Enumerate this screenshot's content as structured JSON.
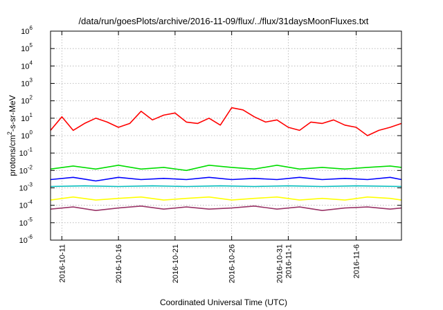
{
  "chart_data": {
    "type": "line",
    "title": "/data/run/goesPlots/archive/2016-11-09/flux/../flux/31daysMoonFluxes.txt",
    "xlabel": "Coordinated Universal Time (UTC)",
    "ylabel": {
      "prefix": "protons/cm",
      "sup": "2",
      "suffix": "-s-sr-MeV"
    },
    "yscale": "log",
    "ylim": [
      1e-06,
      1000000.0
    ],
    "y_ticks": [
      {
        "value": 1e-06,
        "base": "10",
        "exp": "-6"
      },
      {
        "value": 1e-05,
        "base": "10",
        "exp": "-5"
      },
      {
        "value": 0.0001,
        "base": "10",
        "exp": "-4"
      },
      {
        "value": 0.001,
        "base": "10",
        "exp": "-3"
      },
      {
        "value": 0.01,
        "base": "10",
        "exp": "-2"
      },
      {
        "value": 0.1,
        "base": "10",
        "exp": "-1"
      },
      {
        "value": 1,
        "base": "10",
        "exp": "0"
      },
      {
        "value": 10,
        "base": "10",
        "exp": "1"
      },
      {
        "value": 100,
        "base": "10",
        "exp": "2"
      },
      {
        "value": 1000,
        "base": "10",
        "exp": "3"
      },
      {
        "value": 10000,
        "base": "10",
        "exp": "4"
      },
      {
        "value": 100000,
        "base": "10",
        "exp": "5"
      },
      {
        "value": 1000000,
        "base": "10",
        "exp": "6"
      }
    ],
    "xlim": [
      "2016-10-10",
      "2016-11-10"
    ],
    "x_ticks": [
      {
        "date": "2016-10-11",
        "lines": [
          "2016-10-11"
        ]
      },
      {
        "date": "2016-10-16",
        "lines": [
          "2016-10-16"
        ]
      },
      {
        "date": "2016-10-21",
        "lines": [
          "2016-10-21"
        ]
      },
      {
        "date": "2016-10-26",
        "lines": [
          "2016-10-26"
        ]
      },
      {
        "date": "2016-10-31",
        "lines": [
          "2016-10-31",
          "2016-11-1"
        ]
      },
      {
        "date": "2016-11-06",
        "lines": [
          "2016-11-6"
        ]
      }
    ],
    "grid": true,
    "series": [
      {
        "color": "#ff0000",
        "x": [
          "2016-10-10",
          "2016-10-11",
          "2016-10-12",
          "2016-10-13",
          "2016-10-14",
          "2016-10-15",
          "2016-10-16",
          "2016-10-17",
          "2016-10-18",
          "2016-10-19",
          "2016-10-20",
          "2016-10-21",
          "2016-10-22",
          "2016-10-23",
          "2016-10-24",
          "2016-10-25",
          "2016-10-26",
          "2016-10-27",
          "2016-10-28",
          "2016-10-29",
          "2016-10-30",
          "2016-10-31",
          "2016-11-01",
          "2016-11-02",
          "2016-11-03",
          "2016-11-04",
          "2016-11-05",
          "2016-11-06",
          "2016-11-07",
          "2016-11-08",
          "2016-11-09",
          "2016-11-10"
        ],
        "y": [
          2,
          12,
          2,
          5,
          10,
          6,
          3,
          5,
          25,
          8,
          15,
          20,
          6,
          5,
          10,
          4,
          40,
          30,
          12,
          6,
          8,
          3,
          2,
          6,
          5,
          8,
          4,
          3,
          1,
          2,
          3,
          5
        ]
      },
      {
        "color": "#00dd00",
        "x": [
          "2016-10-10",
          "2016-10-12",
          "2016-10-14",
          "2016-10-16",
          "2016-10-18",
          "2016-10-20",
          "2016-10-22",
          "2016-10-24",
          "2016-10-26",
          "2016-10-28",
          "2016-10-30",
          "2016-11-01",
          "2016-11-03",
          "2016-11-05",
          "2016-11-07",
          "2016-11-09",
          "2016-11-10"
        ],
        "y": [
          0.012,
          0.018,
          0.012,
          0.02,
          0.012,
          0.015,
          0.01,
          0.02,
          0.015,
          0.012,
          0.02,
          0.012,
          0.015,
          0.012,
          0.015,
          0.018,
          0.015
        ]
      },
      {
        "color": "#0000ff",
        "x": [
          "2016-10-10",
          "2016-10-12",
          "2016-10-14",
          "2016-10-16",
          "2016-10-18",
          "2016-10-20",
          "2016-10-22",
          "2016-10-24",
          "2016-10-26",
          "2016-10-28",
          "2016-10-30",
          "2016-11-01",
          "2016-11-03",
          "2016-11-05",
          "2016-11-07",
          "2016-11-09",
          "2016-11-10"
        ],
        "y": [
          0.003,
          0.004,
          0.0025,
          0.004,
          0.003,
          0.0035,
          0.003,
          0.004,
          0.003,
          0.0035,
          0.003,
          0.004,
          0.003,
          0.0035,
          0.003,
          0.004,
          0.003
        ]
      },
      {
        "color": "#00bbbb",
        "x": [
          "2016-10-10",
          "2016-10-13",
          "2016-10-16",
          "2016-10-19",
          "2016-10-22",
          "2016-10-25",
          "2016-10-28",
          "2016-10-31",
          "2016-11-03",
          "2016-11-06",
          "2016-11-10"
        ],
        "y": [
          0.0012,
          0.0013,
          0.0012,
          0.0013,
          0.0012,
          0.0013,
          0.0012,
          0.0013,
          0.0012,
          0.0013,
          0.0012
        ]
      },
      {
        "color": "#ffff00",
        "x": [
          "2016-10-10",
          "2016-10-12",
          "2016-10-14",
          "2016-10-16",
          "2016-10-18",
          "2016-10-20",
          "2016-10-22",
          "2016-10-24",
          "2016-10-26",
          "2016-10-28",
          "2016-10-30",
          "2016-11-01",
          "2016-11-03",
          "2016-11-05",
          "2016-11-07",
          "2016-11-09",
          "2016-11-10"
        ],
        "y": [
          0.0002,
          0.0003,
          0.0002,
          0.00025,
          0.0003,
          0.0002,
          0.00025,
          0.0003,
          0.0002,
          0.00025,
          0.0003,
          0.0002,
          0.00025,
          0.0002,
          0.0003,
          0.00025,
          0.0002
        ]
      },
      {
        "color": "#993366",
        "x": [
          "2016-10-10",
          "2016-10-12",
          "2016-10-14",
          "2016-10-16",
          "2016-10-18",
          "2016-10-20",
          "2016-10-22",
          "2016-10-24",
          "2016-10-26",
          "2016-10-28",
          "2016-10-30",
          "2016-11-01",
          "2016-11-03",
          "2016-11-05",
          "2016-11-07",
          "2016-11-09",
          "2016-11-10"
        ],
        "y": [
          6e-05,
          8e-05,
          5e-05,
          7e-05,
          9e-05,
          6e-05,
          8e-05,
          6e-05,
          7e-05,
          9e-05,
          6e-05,
          8e-05,
          5e-05,
          7e-05,
          8e-05,
          6e-05,
          7e-05
        ]
      }
    ]
  }
}
